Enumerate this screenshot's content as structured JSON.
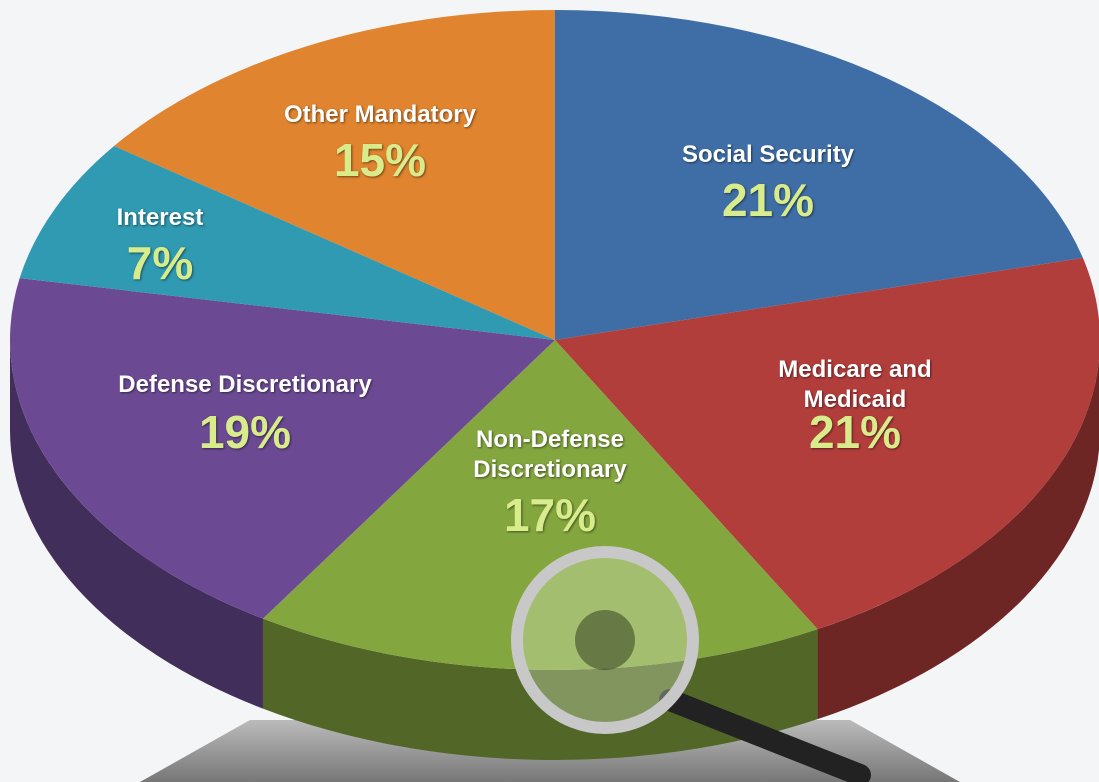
{
  "chart_data": {
    "type": "pie",
    "categories": [
      "Social Security",
      "Medicare and Medicaid",
      "Non-Defense Discretionary",
      "Defense Discretionary",
      "Interest",
      "Other Mandatory"
    ],
    "values": [
      21,
      21,
      17,
      19,
      7,
      15
    ],
    "value_labels": [
      "21%",
      "21%",
      "17%",
      "19%",
      "7%",
      "15%"
    ],
    "colors": [
      "#3f6ea6",
      "#b23e3c",
      "#84a63f",
      "#6b4a93",
      "#2f9ab2",
      "#e0842f"
    ]
  }
}
